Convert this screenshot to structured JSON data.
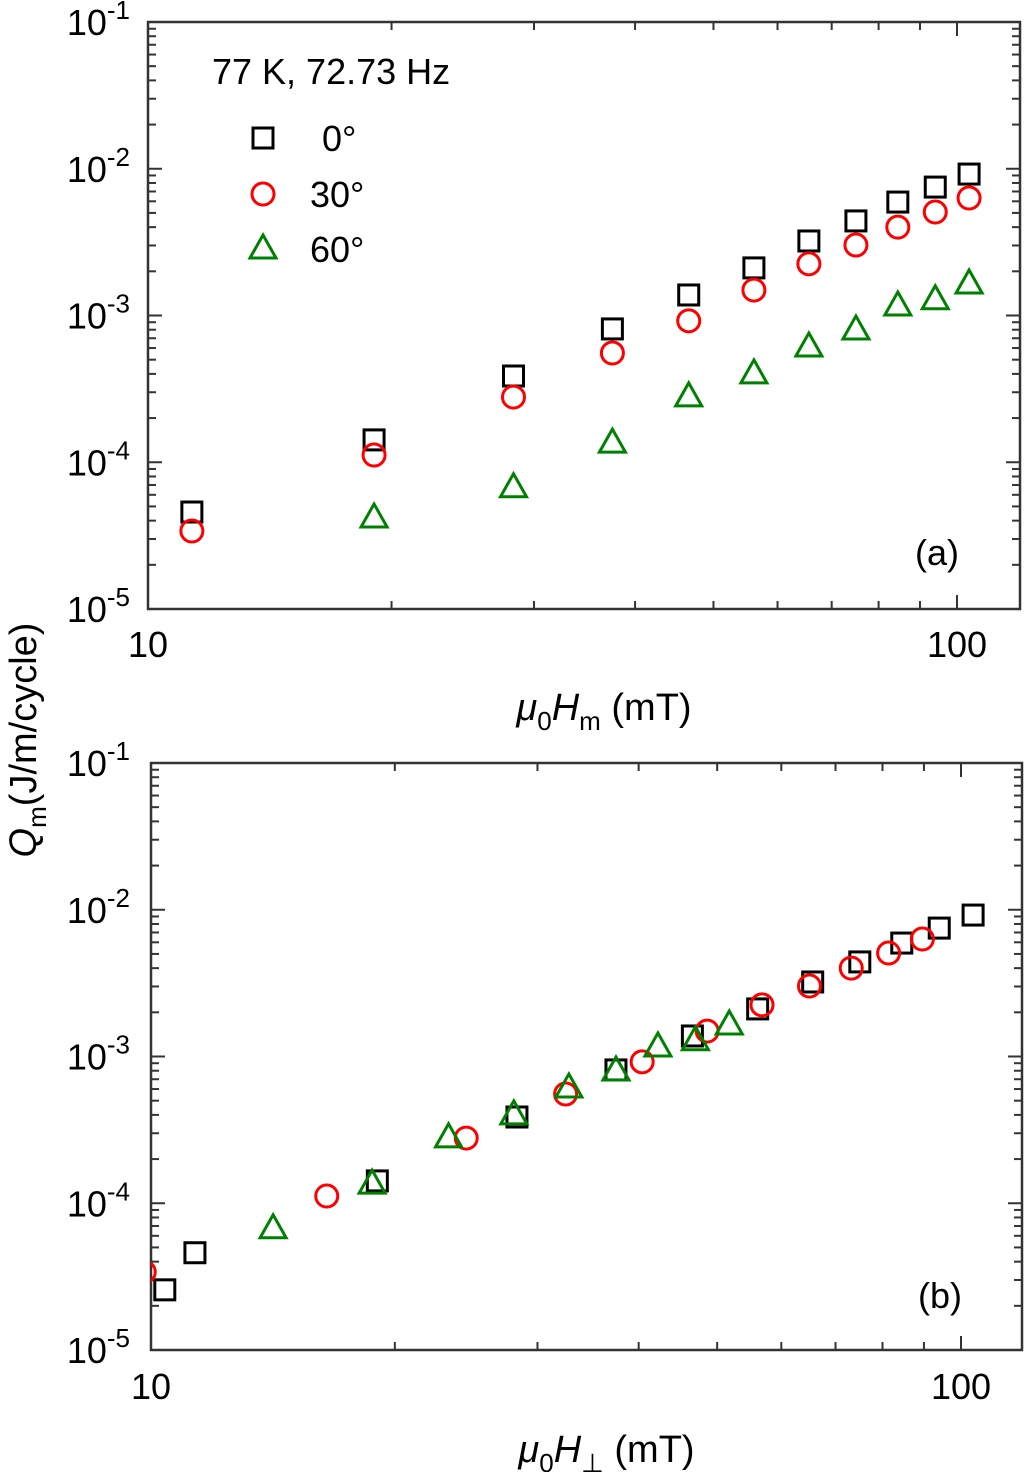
{
  "chart_data": [
    {
      "type": "scatter",
      "panel_label": "(a)",
      "xlabel": {
        "sym": "μ",
        "sub0": "0",
        "sym2": "H",
        "sub": "m",
        "unit": " (mT)"
      },
      "ylabel": {
        "sym": "Q",
        "sub": "m",
        "unit": "(J/m/cycle)"
      },
      "xscale": "log",
      "yscale": "log",
      "xlim": [
        10,
        119
      ],
      "ylim": [
        1e-05,
        0.1
      ],
      "xticks": [
        {
          "v": 10,
          "label": "10"
        },
        {
          "v": 100,
          "label": "100"
        }
      ],
      "yticks": [
        {
          "v": 0.1,
          "base": "10",
          "exp": "-1"
        },
        {
          "v": 0.01,
          "base": "10",
          "exp": "-2"
        },
        {
          "v": 0.001,
          "base": "10",
          "exp": "-3"
        },
        {
          "v": 0.0001,
          "base": "10",
          "exp": "-4"
        },
        {
          "v": 1e-05,
          "base": "10",
          "exp": "-5"
        }
      ],
      "annotation": "77 K, 72.73 Hz",
      "legend_position": "top-left",
      "series": [
        {
          "name": "0°",
          "marker": "square",
          "color": "#000000",
          "x": [
            11.33,
            19.03,
            28.3,
            37.5,
            46.6,
            56.1,
            65.6,
            75.0,
            84.5,
            94.0,
            103.5
          ],
          "y": [
            4.58e-05,
            0.000142,
            0.000387,
            0.00081,
            0.00138,
            0.00211,
            0.00322,
            0.00441,
            0.00593,
            0.0075,
            0.0092
          ]
        },
        {
          "name": "30°",
          "marker": "circle",
          "color": "#ff0000",
          "x": [
            11.33,
            19.03,
            28.3,
            37.5,
            46.6,
            56.1,
            65.6,
            75.0,
            84.5,
            94.0,
            103.5
          ],
          "y": [
            3.4e-05,
            0.000112,
            0.000278,
            0.000555,
            0.00092,
            0.00149,
            0.00225,
            0.00302,
            0.004,
            0.00507,
            0.00632
          ]
        },
        {
          "name": "60°",
          "marker": "triangle",
          "color": "#008000",
          "x": [
            19.03,
            28.3,
            37.5,
            46.6,
            56.1,
            65.6,
            75.0,
            84.5,
            94.0,
            103.5
          ],
          "y": [
            4.17e-05,
            6.7e-05,
            0.000135,
            0.000279,
            0.0004,
            0.00061,
            0.000796,
            0.00116,
            0.00128,
            0.00164
          ]
        }
      ]
    },
    {
      "type": "scatter",
      "panel_label": "(b)",
      "xlabel": {
        "sym": "μ",
        "sub0": "0",
        "sym2": "H",
        "sub": "⊥",
        "unit": " (mT)"
      },
      "xscale": "log",
      "yscale": "log",
      "xlim": [
        10,
        119
      ],
      "ylim": [
        1e-05,
        0.1
      ],
      "xticks": [
        {
          "v": 10,
          "label": "10"
        },
        {
          "v": 100,
          "label": "100"
        }
      ],
      "yticks": [
        {
          "v": 0.1,
          "base": "10",
          "exp": "-1"
        },
        {
          "v": 0.01,
          "base": "10",
          "exp": "-2"
        },
        {
          "v": 0.001,
          "base": "10",
          "exp": "-3"
        },
        {
          "v": 0.0001,
          "base": "10",
          "exp": "-4"
        },
        {
          "v": 1e-05,
          "base": "10",
          "exp": "-5"
        }
      ],
      "series": [
        {
          "name": "0°",
          "marker": "square",
          "color": "#000000",
          "x": [
            10.4,
            11.33,
            19.03,
            28.3,
            37.5,
            46.6,
            56.1,
            65.6,
            75.0,
            84.5,
            94.0,
            103.5
          ],
          "y": [
            2.57e-05,
            4.6e-05,
            0.000142,
            0.000387,
            0.00081,
            0.00138,
            0.00211,
            0.00322,
            0.00441,
            0.00593,
            0.0075,
            0.0092
          ]
        },
        {
          "name": "30°",
          "marker": "circle",
          "color": "#ff0000",
          "x": [
            9.81,
            16.48,
            24.5,
            32.5,
            40.4,
            48.6,
            56.8,
            65.0,
            73.2,
            81.4,
            89.6
          ],
          "y": [
            3.4e-05,
            0.000112,
            0.000278,
            0.000555,
            0.00092,
            0.00149,
            0.00225,
            0.00302,
            0.004,
            0.00507,
            0.00632
          ]
        },
        {
          "name": "60°",
          "marker": "triangle",
          "color": "#008000",
          "x": [
            14.15,
            18.75,
            23.3,
            28.05,
            32.8,
            37.5,
            42.25,
            47.0,
            51.75
          ],
          "y": [
            6.7e-05,
            0.000135,
            0.000279,
            0.0004,
            0.00061,
            0.000796,
            0.00116,
            0.00128,
            0.00164
          ]
        }
      ]
    }
  ]
}
